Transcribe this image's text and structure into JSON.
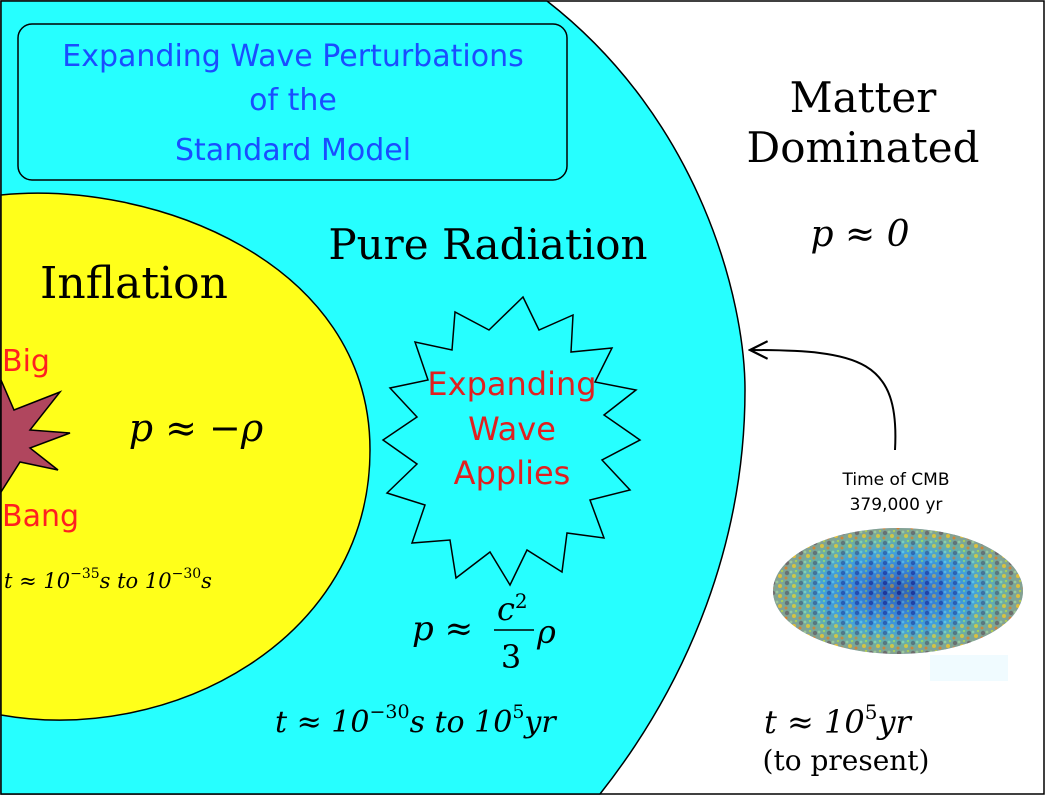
{
  "title": {
    "line1": "Expanding Wave Perturbations",
    "line2": "of the",
    "line3": "Standard Model"
  },
  "matter_era": {
    "heading_line1": "Matter",
    "heading_line2": "Dominated",
    "equation": "p ≈ 0",
    "time_line1": "t ≈ 10",
    "time_exp": "5",
    "time_unit": "yr",
    "time_line2": "(to present)"
  },
  "radiation_era": {
    "heading": "Pure Radiation",
    "burst_line1": "Expanding",
    "burst_line2": "Wave",
    "burst_line3": "Applies",
    "eq_p": "p ≈",
    "eq_num": "c",
    "eq_num_exp": "2",
    "eq_den": "3",
    "eq_rho": "ρ",
    "time_t": "t ≈ 10",
    "time_exp1": "−30",
    "time_mid": "s to 10",
    "time_exp2": "5",
    "time_unit": "yr"
  },
  "inflation_era": {
    "heading": "Inflation",
    "big": "Big",
    "bang": "Bang",
    "equation": "p ≈ −ρ",
    "time_t": "t ≈ 10",
    "time_exp1": "−35",
    "time_mid": "s to 10",
    "time_exp2": "−30",
    "time_unit": "s"
  },
  "cmb": {
    "label_line1": "Time of CMB",
    "label_line2": "379,000 yr"
  },
  "colors": {
    "radiation": "#26ffff",
    "inflation": "#ffff1a",
    "title_text": "#1a4dff",
    "burst_text": "#e02020",
    "bigbang_text": "#ff2020",
    "star_fill": "#b0465e"
  }
}
